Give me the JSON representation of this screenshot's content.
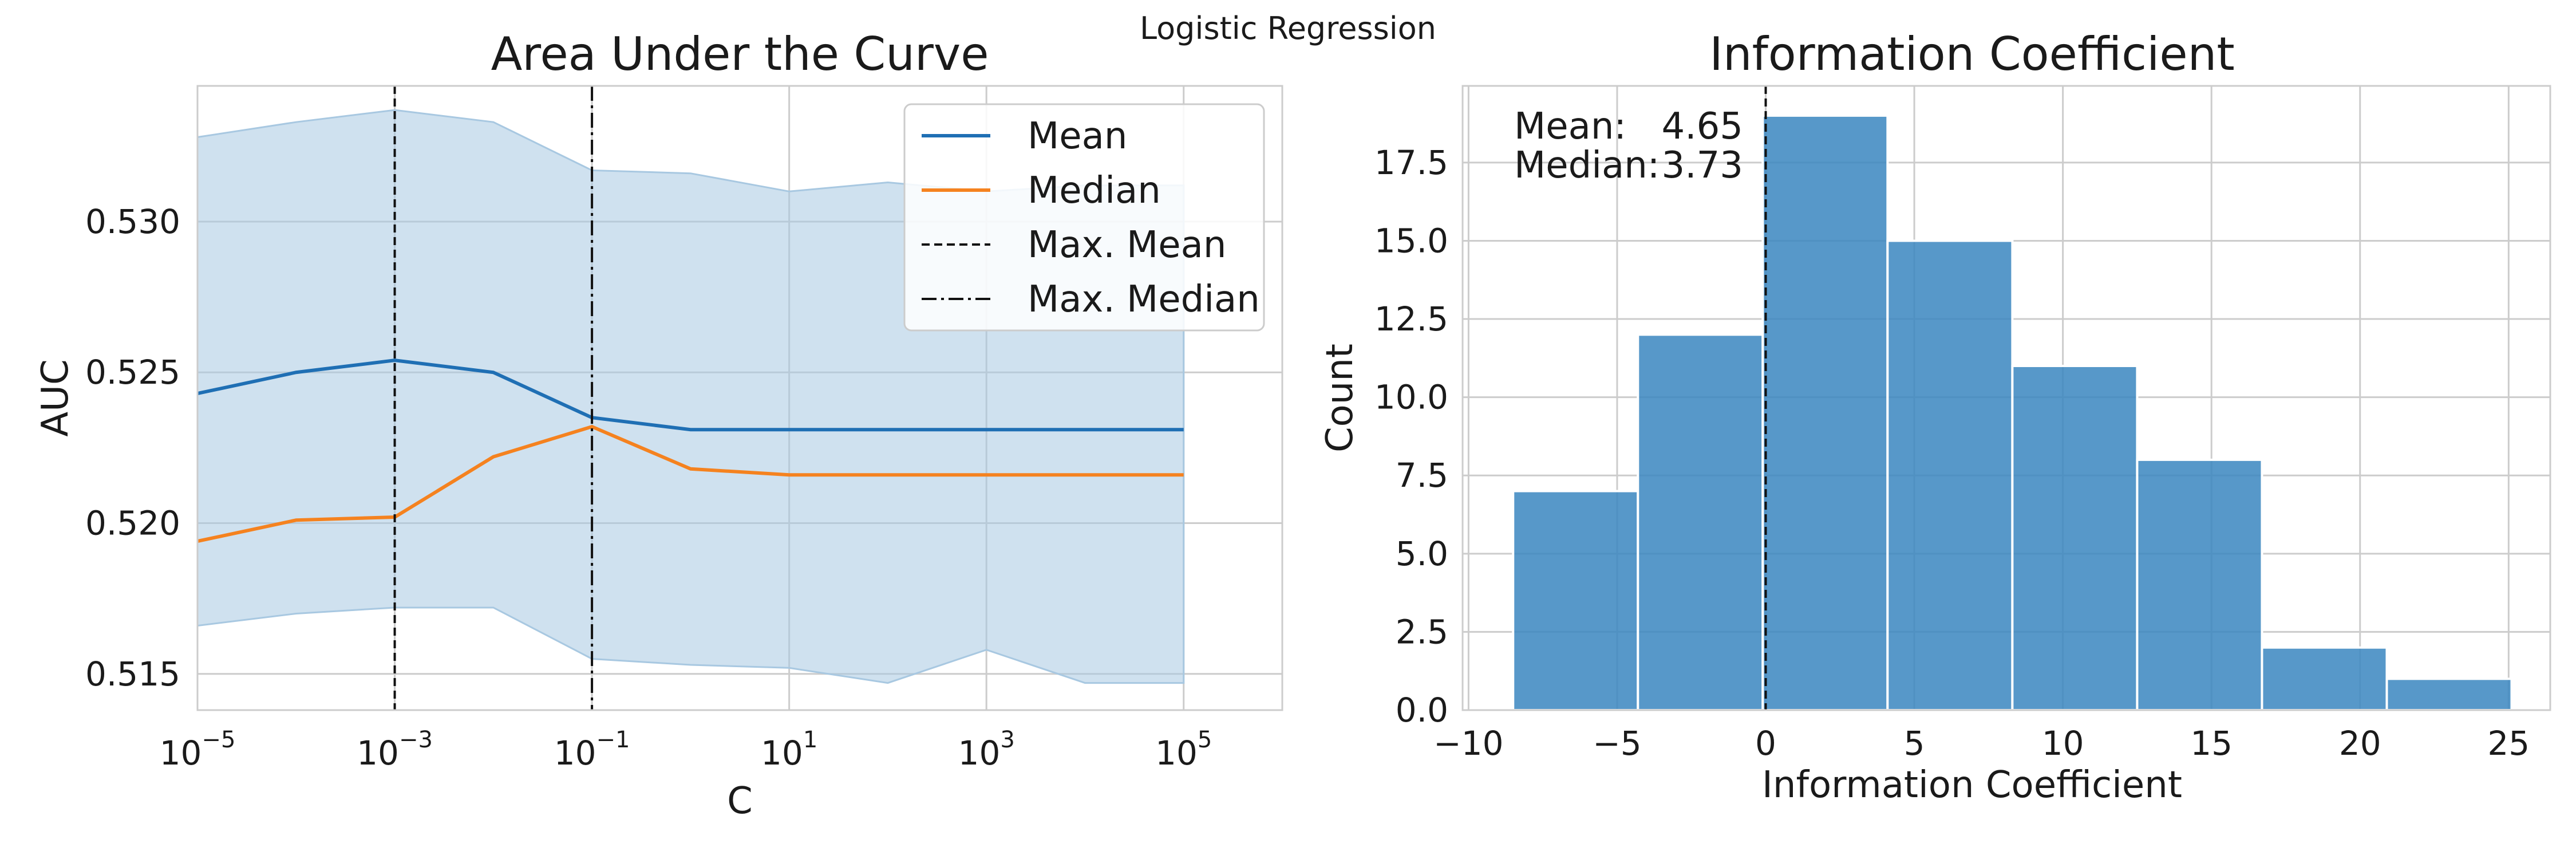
{
  "suptitle": "Logistic Regression",
  "chart_data": [
    {
      "type": "line",
      "title": "Area Under the Curve",
      "xlabel": "C",
      "ylabel": "AUC",
      "xscale": "log",
      "x": [
        1e-05,
        0.0001,
        0.001,
        0.01,
        0.1,
        1.0,
        10.0,
        100.0,
        1000.0,
        10000.0,
        100000.0
      ],
      "xlim": [
        1e-05,
        1000000.0
      ],
      "ylim": [
        0.5138,
        0.5345
      ],
      "x_ticks": [
        {
          "base": "10",
          "exp": "−5",
          "value": 1e-05
        },
        {
          "base": "10",
          "exp": "−3",
          "value": 0.001
        },
        {
          "base": "10",
          "exp": "−1",
          "value": 0.1
        },
        {
          "base": "10",
          "exp": "1",
          "value": 10.0
        },
        {
          "base": "10",
          "exp": "3",
          "value": 1000.0
        },
        {
          "base": "10",
          "exp": "5",
          "value": 100000.0
        }
      ],
      "y_ticks": [
        "0.515",
        "0.520",
        "0.525",
        "0.530"
      ],
      "y_tick_values": [
        0.515,
        0.52,
        0.525,
        0.53
      ],
      "series": [
        {
          "name": "Mean",
          "color": "#1f6fb4",
          "values": [
            0.5243,
            0.525,
            0.5254,
            0.525,
            0.5235,
            0.5231,
            0.5231,
            0.5231,
            0.5231,
            0.5231,
            0.5231
          ]
        },
        {
          "name": "Median",
          "color": "#f5821f",
          "values": [
            0.5194,
            0.5201,
            0.5202,
            0.5222,
            0.5232,
            0.5218,
            0.5216,
            0.5216,
            0.5216,
            0.5216,
            0.5216
          ]
        }
      ],
      "band": {
        "color": "#a8c8e1",
        "upper": [
          0.5328,
          0.5333,
          0.5337,
          0.5333,
          0.5317,
          0.5316,
          0.531,
          0.5313,
          0.531,
          0.5312,
          0.5312
        ],
        "lower": [
          0.5166,
          0.517,
          0.5172,
          0.5172,
          0.5155,
          0.5153,
          0.5152,
          0.5147,
          0.5158,
          0.5147,
          0.5147
        ]
      },
      "vlines": [
        {
          "name": "Max. Mean",
          "x": 0.001,
          "style": "dashed"
        },
        {
          "name": "Max. Median",
          "x": 0.1,
          "style": "dashdot"
        }
      ],
      "legend_position": "top-right"
    },
    {
      "type": "bar",
      "title": "Information Coefficient",
      "xlabel": "Information Coefficient",
      "ylabel": "Count",
      "xlim": [
        -10.2,
        26.4
      ],
      "ylim": [
        0,
        19.95
      ],
      "x_ticks": [
        "−10",
        "−5",
        "0",
        "5",
        "10",
        "15",
        "20",
        "25"
      ],
      "x_tick_values": [
        -10,
        -5,
        0,
        5,
        10,
        15,
        20,
        25
      ],
      "y_ticks": [
        "0.0",
        "2.5",
        "5.0",
        "7.5",
        "10.0",
        "12.5",
        "15.0",
        "17.5"
      ],
      "y_tick_values": [
        0,
        2.5,
        5,
        7.5,
        10,
        12.5,
        15,
        17.5
      ],
      "bins": [
        {
          "start": -8.5,
          "end": -4.3,
          "count": 7
        },
        {
          "start": -4.3,
          "end": -0.1,
          "count": 12
        },
        {
          "start": -0.1,
          "end": 4.1,
          "count": 19
        },
        {
          "start": 4.1,
          "end": 8.3,
          "count": 15
        },
        {
          "start": 8.3,
          "end": 12.5,
          "count": 11
        },
        {
          "start": 12.5,
          "end": 16.7,
          "count": 8
        },
        {
          "start": 16.7,
          "end": 20.9,
          "count": 2
        },
        {
          "start": 20.9,
          "end": 25.1,
          "count": 1
        }
      ],
      "bar_color": "#3a86c0",
      "vline": {
        "x": 0,
        "style": "dashed"
      },
      "annotation": {
        "mean_label": "Mean:",
        "mean_value": "4.65",
        "median_label": "Median:",
        "median_value": "3.73"
      }
    }
  ]
}
